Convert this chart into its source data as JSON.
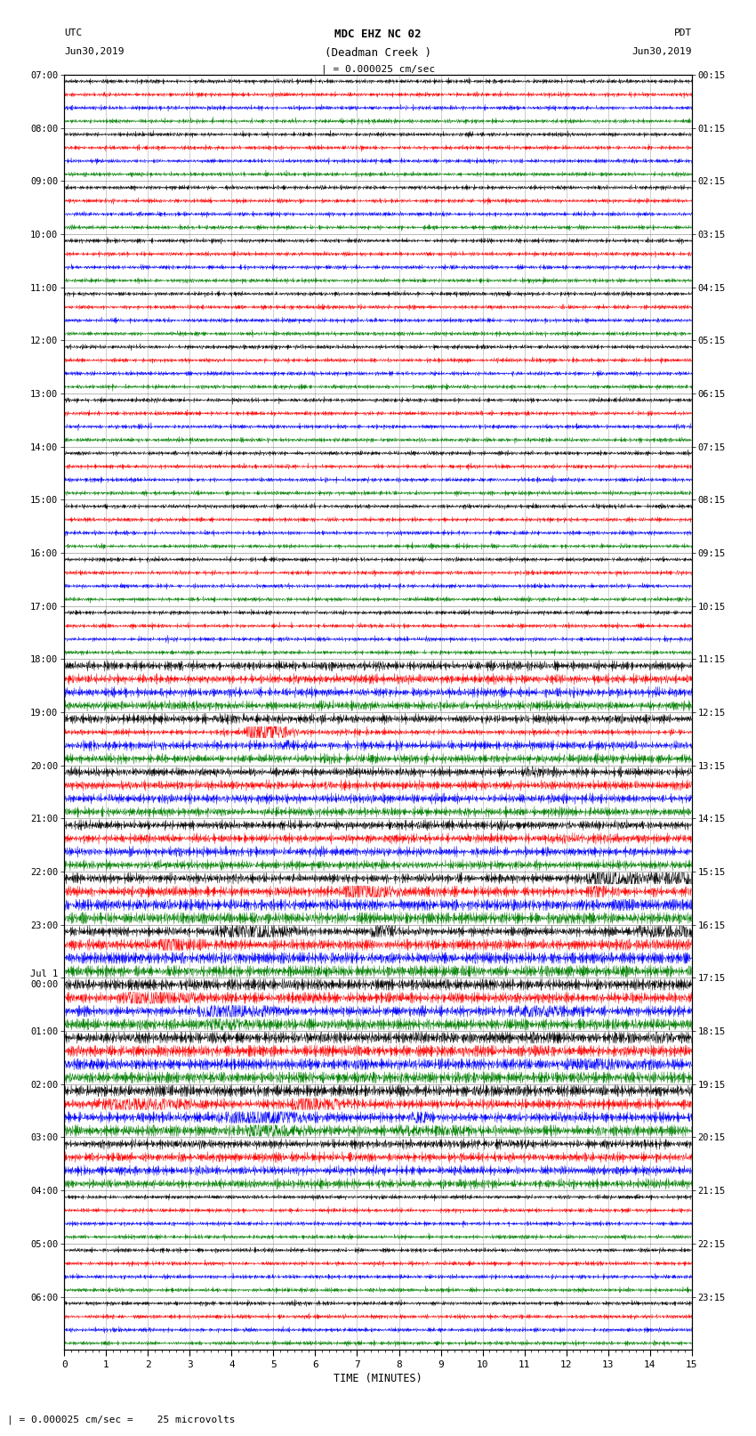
{
  "title_line1": "MDC EHZ NC 02",
  "title_line2": "(Deadman Creek )",
  "title_line3": "| = 0.000025 cm/sec",
  "left_label_top": "UTC",
  "left_label_date": "Jun30,2019",
  "right_label_top": "PDT",
  "right_label_date": "Jun30,2019",
  "xlabel": "TIME (MINUTES)",
  "footnote": "| = 0.000025 cm/sec =    25 microvolts",
  "utc_times": [
    "07:00",
    "08:00",
    "09:00",
    "10:00",
    "11:00",
    "12:00",
    "13:00",
    "14:00",
    "15:00",
    "16:00",
    "17:00",
    "18:00",
    "19:00",
    "20:00",
    "21:00",
    "22:00",
    "23:00",
    "Jul 1\n00:00",
    "01:00",
    "02:00",
    "03:00",
    "04:00",
    "05:00",
    "06:00"
  ],
  "pdt_times": [
    "00:15",
    "01:15",
    "02:15",
    "03:15",
    "04:15",
    "05:15",
    "06:15",
    "07:15",
    "08:15",
    "09:15",
    "10:15",
    "11:15",
    "12:15",
    "13:15",
    "14:15",
    "15:15",
    "16:15",
    "17:15",
    "18:15",
    "19:15",
    "20:15",
    "21:15",
    "22:15",
    "23:15"
  ],
  "colors": [
    "black",
    "red",
    "blue",
    "green"
  ],
  "n_hours": 24,
  "n_cols": 1800,
  "xlim": [
    0,
    15
  ],
  "bg_color": "white",
  "grid_color": "#888888",
  "quiet_hours": [
    0,
    1,
    2,
    3,
    4,
    5,
    6,
    7,
    8,
    9,
    10,
    21,
    22,
    23
  ],
  "medium_hours": [
    11,
    12,
    13,
    14,
    20
  ],
  "active_hours": [
    15,
    16,
    17,
    18,
    19
  ]
}
